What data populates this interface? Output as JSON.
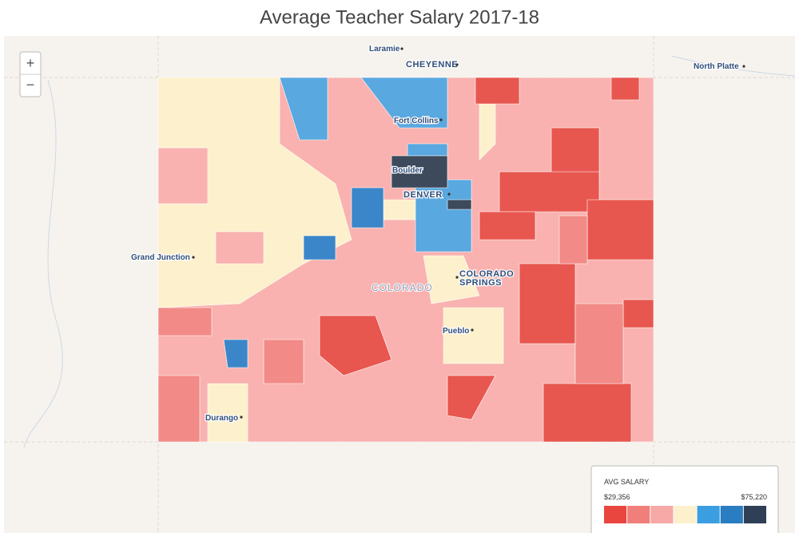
{
  "title": "Average Teacher Salary 2017-18",
  "zoom": {
    "in": "+",
    "out": "−"
  },
  "map": {
    "labels": [
      {
        "text": "Laramie"
      },
      {
        "text": "CHEYENNE"
      },
      {
        "text": "North Platte"
      },
      {
        "text": "Fort Collins"
      },
      {
        "text": "Boulder"
      },
      {
        "text": "DENVER"
      },
      {
        "text": "Grand Junction"
      },
      {
        "lines": [
          "COLORADO",
          "SPRINGS"
        ]
      },
      {
        "text": "COLORADO"
      },
      {
        "text": "Pueblo"
      },
      {
        "text": "Durango"
      }
    ]
  },
  "legend": {
    "title": "AVG SALARY",
    "min_label": "$29,356",
    "max_label": "$75,220",
    "colors": [
      "#e8463e",
      "#f07e7a",
      "#f7a9a8",
      "#fdf0cc",
      "#3b9ee0",
      "#2a7dc0",
      "#2e3f56"
    ]
  }
}
